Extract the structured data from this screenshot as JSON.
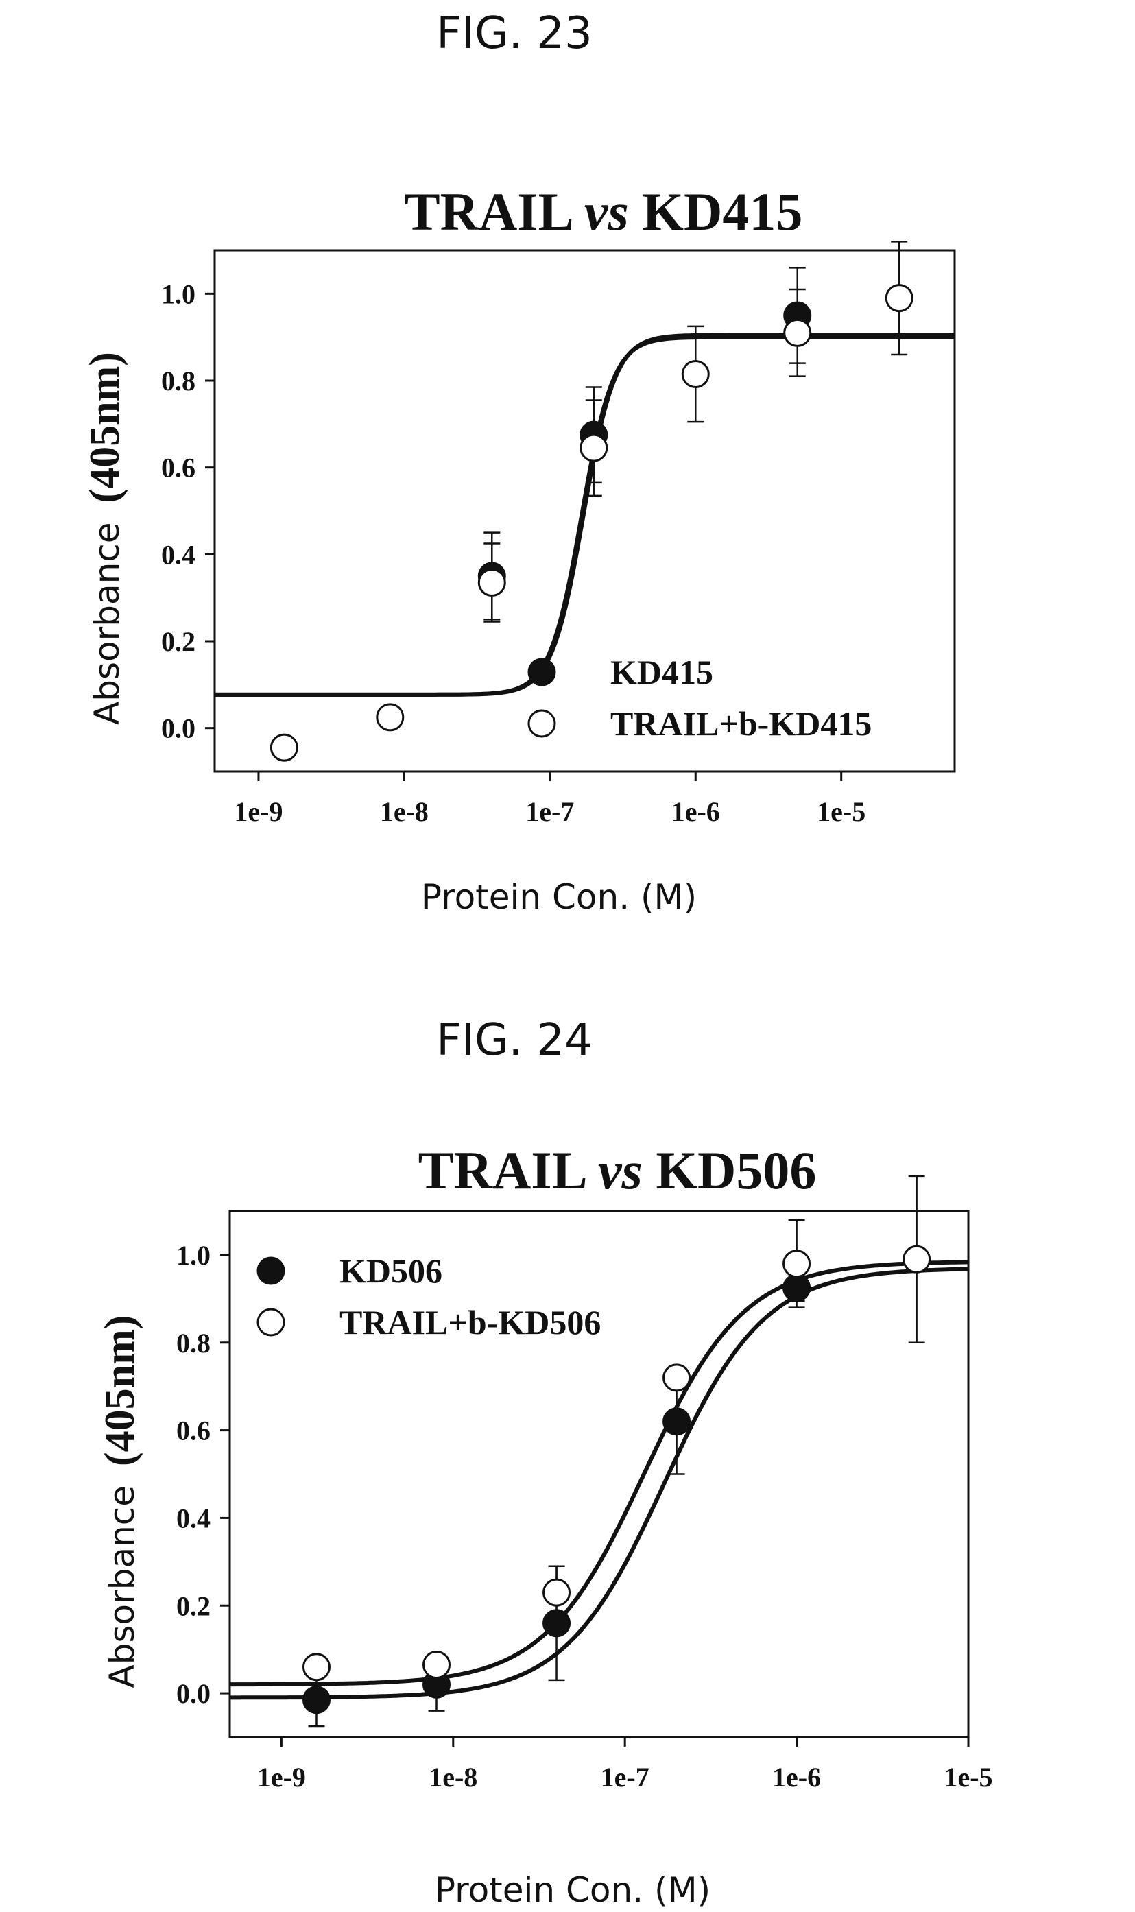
{
  "figures": [
    {
      "label": "FIG. 23"
    },
    {
      "label": "FIG. 24"
    }
  ],
  "chart_data": [
    {
      "type": "scatter",
      "title_parts": [
        "TRAIL ",
        "vs",
        " KD415"
      ],
      "xlabel": "Protein Con. (M)",
      "ylabel_parts": [
        "Absorbance",
        "(405nm)"
      ],
      "x_scale": "log",
      "xlim": [
        5e-10,
        6e-05
      ],
      "ylim": [
        -0.1,
        1.1
      ],
      "x_ticks": [
        {
          "value": 1e-09,
          "label": "1e-9"
        },
        {
          "value": 1e-08,
          "label": "1e-8"
        },
        {
          "value": 1e-07,
          "label": "1e-7"
        },
        {
          "value": 1e-06,
          "label": "1e-6"
        },
        {
          "value": 1e-05,
          "label": "1e-5"
        }
      ],
      "y_ticks": [
        {
          "value": 0.0,
          "label": "0.0"
        },
        {
          "value": 0.2,
          "label": "0.2"
        },
        {
          "value": 0.4,
          "label": "0.4"
        },
        {
          "value": 0.6,
          "label": "0.6"
        },
        {
          "value": 0.8,
          "label": "0.8"
        },
        {
          "value": 1.0,
          "label": "1.0"
        }
      ],
      "legend_position": "bottom-right",
      "grid": false,
      "series": [
        {
          "name": "KD415",
          "marker": "filled",
          "curve": {
            "bottom": 0.077,
            "top": 0.905,
            "ec50": 1.7e-07,
            "hill": 4.0
          },
          "x": [
            4e-08,
            2e-07,
            5e-06
          ],
          "y": [
            0.35,
            0.675,
            0.95
          ],
          "err": [
            0.1,
            0.11,
            0.11
          ]
        },
        {
          "name": "TRAIL+b-KD415",
          "marker": "open",
          "curve": {
            "bottom": 0.077,
            "top": 0.9,
            "ec50": 1.65e-07,
            "hill": 4.0
          },
          "x": [
            1.5e-09,
            8e-09,
            4e-08,
            2e-07,
            1e-06,
            5e-06,
            2.5e-05
          ],
          "y": [
            -0.045,
            0.025,
            0.335,
            0.645,
            0.815,
            0.91,
            0.99
          ],
          "err": [
            0,
            0,
            0.09,
            0.11,
            0.11,
            0.1,
            0.13
          ]
        }
      ]
    },
    {
      "type": "scatter",
      "title_parts": [
        "TRAIL ",
        "vs",
        " KD506"
      ],
      "xlabel": "Protein Con. (M)",
      "ylabel_parts": [
        "Absorbance",
        "(405nm)"
      ],
      "x_scale": "log",
      "xlim": [
        5e-10,
        1e-05
      ],
      "ylim": [
        -0.1,
        1.1
      ],
      "x_ticks": [
        {
          "value": 1e-09,
          "label": "1e-9"
        },
        {
          "value": 1e-08,
          "label": "1e-8"
        },
        {
          "value": 1e-07,
          "label": "1e-7"
        },
        {
          "value": 1e-06,
          "label": "1e-6"
        },
        {
          "value": 1e-05,
          "label": "1e-5"
        }
      ],
      "y_ticks": [
        {
          "value": 0.0,
          "label": "0.0"
        },
        {
          "value": 0.2,
          "label": "0.2"
        },
        {
          "value": 0.4,
          "label": "0.4"
        },
        {
          "value": 0.6,
          "label": "0.6"
        },
        {
          "value": 0.8,
          "label": "0.8"
        },
        {
          "value": 1.0,
          "label": "1.0"
        }
      ],
      "legend_position": "top-left",
      "grid": false,
      "series": [
        {
          "name": "KD506",
          "marker": "filled",
          "curve": {
            "bottom": -0.01,
            "top": 0.97,
            "ec50": 1.7e-07,
            "hill": 1.5
          },
          "x": [
            1.6e-09,
            8e-09,
            4e-08,
            2e-07,
            1e-06
          ],
          "y": [
            -0.015,
            0.02,
            0.16,
            0.62,
            0.925
          ],
          "err": [
            0.06,
            0.06,
            0.13,
            0.12,
            0.03
          ]
        },
        {
          "name": "TRAIL+b-KD506",
          "marker": "open",
          "curve": {
            "bottom": 0.02,
            "top": 0.985,
            "ec50": 1.3e-07,
            "hill": 1.5
          },
          "x": [
            1.6e-09,
            8e-09,
            4e-08,
            2e-07,
            1e-06,
            5e-06
          ],
          "y": [
            0.06,
            0.065,
            0.23,
            0.72,
            0.98,
            0.99
          ],
          "err": [
            0,
            0,
            0.06,
            0,
            0.1,
            0.19
          ]
        }
      ]
    }
  ]
}
